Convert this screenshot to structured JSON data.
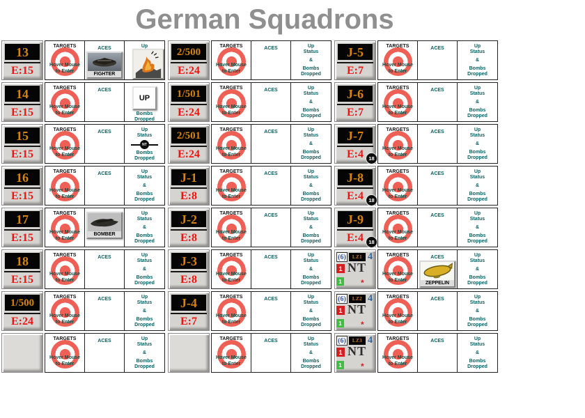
{
  "title": "German Squadrons",
  "labels": {
    "targets": "TARGETS",
    "hover1": "Hover Mouse",
    "hover2": "to Enter",
    "aces": "ACES",
    "up": "Up",
    "status": "Status",
    "amp": "&",
    "bombs": "Bombs",
    "dropped": "Dropped",
    "up_button": "UP",
    "fighter": "FIGHTER",
    "bomber": "BOMBER",
    "zeppelin": "ZEPPELIN",
    "nt_marker": "NT"
  },
  "colors": {
    "title_gray": "#8f8f8f",
    "target_red": "#ee6055",
    "label_teal": "#0b6161",
    "hover_teal": "#0d4f46",
    "lcd_orange": "#d8830c",
    "strength_red": "#ee1511",
    "airship_blue": "#2b4fb0",
    "counter_red": "#d42020",
    "counter_green": "#3fbf3f"
  },
  "groups": [
    {
      "name": "left",
      "rows": [
        {
          "id": "13",
          "e": "E:15",
          "aces": "fighter",
          "up": "crash"
        },
        {
          "id": "14",
          "e": "E:15",
          "up": "up_button"
        },
        {
          "id": "15",
          "e": "E:15",
          "up": "nt_disc"
        },
        {
          "id": "16",
          "e": "E:15"
        },
        {
          "id": "17",
          "e": "E:15",
          "aces": "bomber"
        },
        {
          "id": "18",
          "e": "E:15"
        },
        {
          "id": "1/500",
          "e": "E:24"
        },
        {
          "empty": true
        }
      ]
    },
    {
      "name": "middle",
      "rows": [
        {
          "id": "2/500",
          "e": "E:24"
        },
        {
          "id": "1/501",
          "e": "E:24"
        },
        {
          "id": "2/501",
          "e": "E:24"
        },
        {
          "id": "J-1",
          "e": "E:8"
        },
        {
          "id": "J-2",
          "e": "E:8"
        },
        {
          "id": "J-3",
          "e": "E:8"
        },
        {
          "id": "J-4",
          "e": "E:7"
        },
        {
          "empty": true
        }
      ]
    },
    {
      "name": "right",
      "rows": [
        {
          "id": "J-5",
          "e": "E:7"
        },
        {
          "id": "J-6",
          "e": "E:7"
        },
        {
          "id": "J-7",
          "e": "E:4",
          "badge": "18"
        },
        {
          "id": "J-8",
          "e": "E:4",
          "badge": "18"
        },
        {
          "id": "J-9",
          "e": "E:4",
          "badge": "18"
        },
        {
          "lz": {
            "paren": "(6)",
            "name": "LZ1",
            "num": "4",
            "red": "1",
            "nt": "NT",
            "green": "1",
            "star": "*"
          },
          "aces": "zeppelin"
        },
        {
          "lz": {
            "paren": "(6)",
            "name": "LZ2",
            "num": "4",
            "red": "1",
            "nt": "NT",
            "green": "1",
            "star": "*"
          }
        },
        {
          "lz": {
            "paren": "(6)",
            "name": "LZ3",
            "num": "4",
            "red": "1",
            "nt": "NT",
            "green": "1",
            "star": "*"
          }
        }
      ]
    }
  ]
}
